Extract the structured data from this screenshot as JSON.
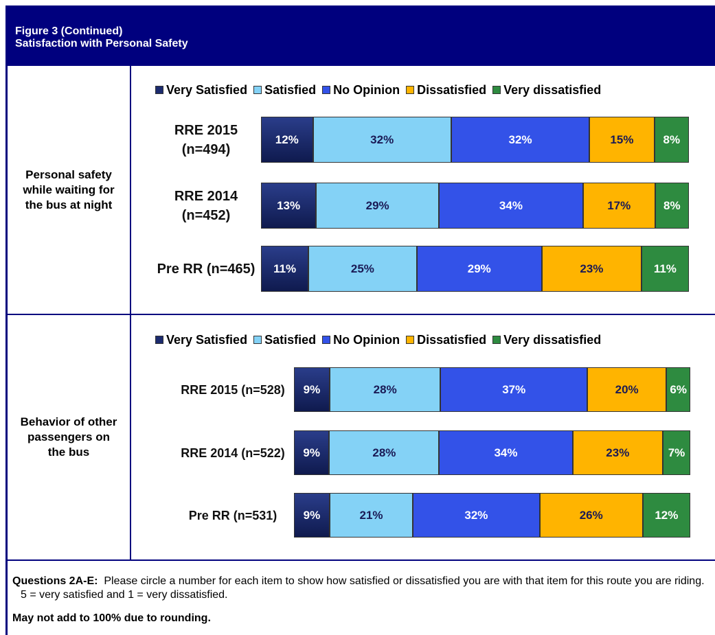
{
  "header": {
    "title": "Figure 3 (Continued)",
    "subtitle": "Satisfaction with Personal Safety"
  },
  "chart_data": [
    {
      "type": "stacked-bar",
      "title": "Personal safety while waiting for the bus at night",
      "categories": [
        "RRE 2015 (n=494)",
        "RRE 2014 (n=452)",
        "Pre RR (n=465)"
      ],
      "series": [
        {
          "name": "Very Satisfied",
          "color": "#1c2b6e",
          "values": [
            12,
            13,
            11
          ],
          "value_labels": [
            "12%",
            "13%",
            "11%"
          ]
        },
        {
          "name": "Satisfied",
          "color": "#84d2f6",
          "values": [
            32,
            29,
            25
          ],
          "value_labels": [
            "32%",
            "29%",
            "25%"
          ]
        },
        {
          "name": "No Opinion",
          "color": "#3352e8",
          "values": [
            32,
            34,
            29
          ],
          "value_labels": [
            "32%",
            "34%",
            "29%"
          ]
        },
        {
          "name": "Dissatisfied",
          "color": "#ffb400",
          "values": [
            15,
            17,
            23
          ],
          "value_labels": [
            "15%",
            "17%",
            "23%"
          ]
        },
        {
          "name": "Very dissatisfied",
          "color": "#2e8b40",
          "values": [
            8,
            8,
            11
          ],
          "value_labels": [
            "8%",
            "8%",
            "11%"
          ]
        }
      ]
    },
    {
      "type": "stacked-bar",
      "title": "Behavior of other passengers on the bus",
      "categories": [
        "RRE 2015 (n=528)",
        "RRE 2014 (n=522)",
        "Pre RR (n=531)"
      ],
      "series": [
        {
          "name": "Very Satisfied",
          "color": "#1c2b6e",
          "values": [
            9,
            9,
            9
          ],
          "value_labels": [
            "9%",
            "9%",
            "9%"
          ]
        },
        {
          "name": "Satisfied",
          "color": "#84d2f6",
          "values": [
            28,
            28,
            21
          ],
          "value_labels": [
            "28%",
            "28%",
            "21%"
          ]
        },
        {
          "name": "No Opinion",
          "color": "#3352e8",
          "values": [
            37,
            34,
            32
          ],
          "value_labels": [
            "37%",
            "34%",
            "32%"
          ]
        },
        {
          "name": "Dissatisfied",
          "color": "#ffb400",
          "values": [
            20,
            23,
            26
          ],
          "value_labels": [
            "20%",
            "23%",
            "26%"
          ]
        },
        {
          "name": "Very dissatisfied",
          "color": "#2e8b40",
          "values": [
            6,
            7,
            12
          ],
          "value_labels": [
            "6%",
            "7%",
            "12%"
          ]
        }
      ]
    }
  ],
  "footer": {
    "question_label": "Questions 2A-E:",
    "question_text": "Please circle a number for each item to show how satisfied or dissatisfied you are with that item for this route you are riding.  5 = very satisfied and 1 = very dissatisfied.",
    "note": "May not add to 100% due to rounding."
  }
}
